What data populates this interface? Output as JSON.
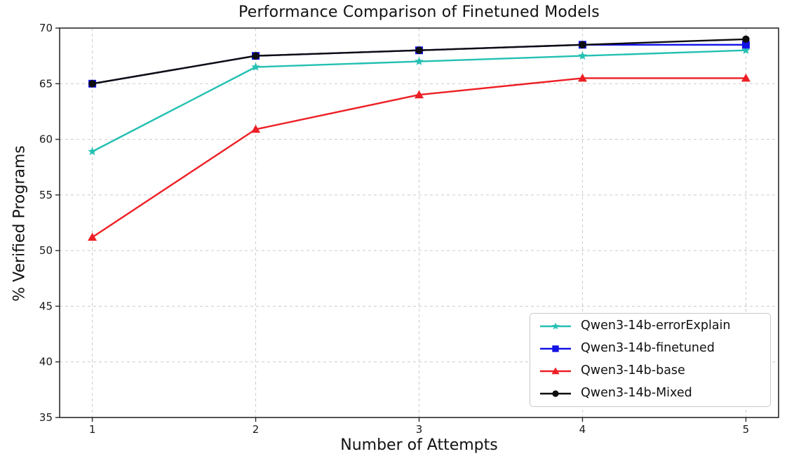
{
  "chart_data": {
    "type": "line",
    "title": "Performance Comparison of Finetuned Models",
    "xlabel": "Number of Attempts",
    "ylabel": "% Verified Programs",
    "x": [
      1,
      2,
      3,
      4,
      5
    ],
    "xticks": [
      "1",
      "2",
      "3",
      "4",
      "5"
    ],
    "yticks": [
      35,
      40,
      45,
      50,
      55,
      60,
      65,
      70
    ],
    "xlim": [
      0.8,
      5.2
    ],
    "ylim": [
      35,
      70
    ],
    "grid": true,
    "grid_style": "dashed",
    "legend_position": "lower right",
    "series": [
      {
        "name": "Qwen3-14b-errorExplain",
        "color": "#23c0b2",
        "marker": "star",
        "values": [
          58.9,
          66.5,
          67.0,
          67.5,
          68.0
        ]
      },
      {
        "name": "Qwen3-14b-finetuned",
        "color": "#1212e6",
        "marker": "square",
        "values": [
          65.0,
          67.5,
          68.0,
          68.5,
          68.5
        ]
      },
      {
        "name": "Qwen3-14b-base",
        "color": "#ed1f24",
        "marker": "triangle",
        "values": [
          51.2,
          60.9,
          64.0,
          65.5,
          65.5
        ]
      },
      {
        "name": "Qwen3-14b-Mixed",
        "color": "#0e0e0e",
        "marker": "circle",
        "values": [
          65.0,
          67.5,
          68.0,
          68.5,
          69.0
        ]
      }
    ],
    "colors": {
      "grid": "#cbcbcb",
      "axis": "#2b2b2b",
      "tick_label": "#1a1a1a",
      "legend_border": "#c9c9c9",
      "background": "#ffffff"
    }
  }
}
